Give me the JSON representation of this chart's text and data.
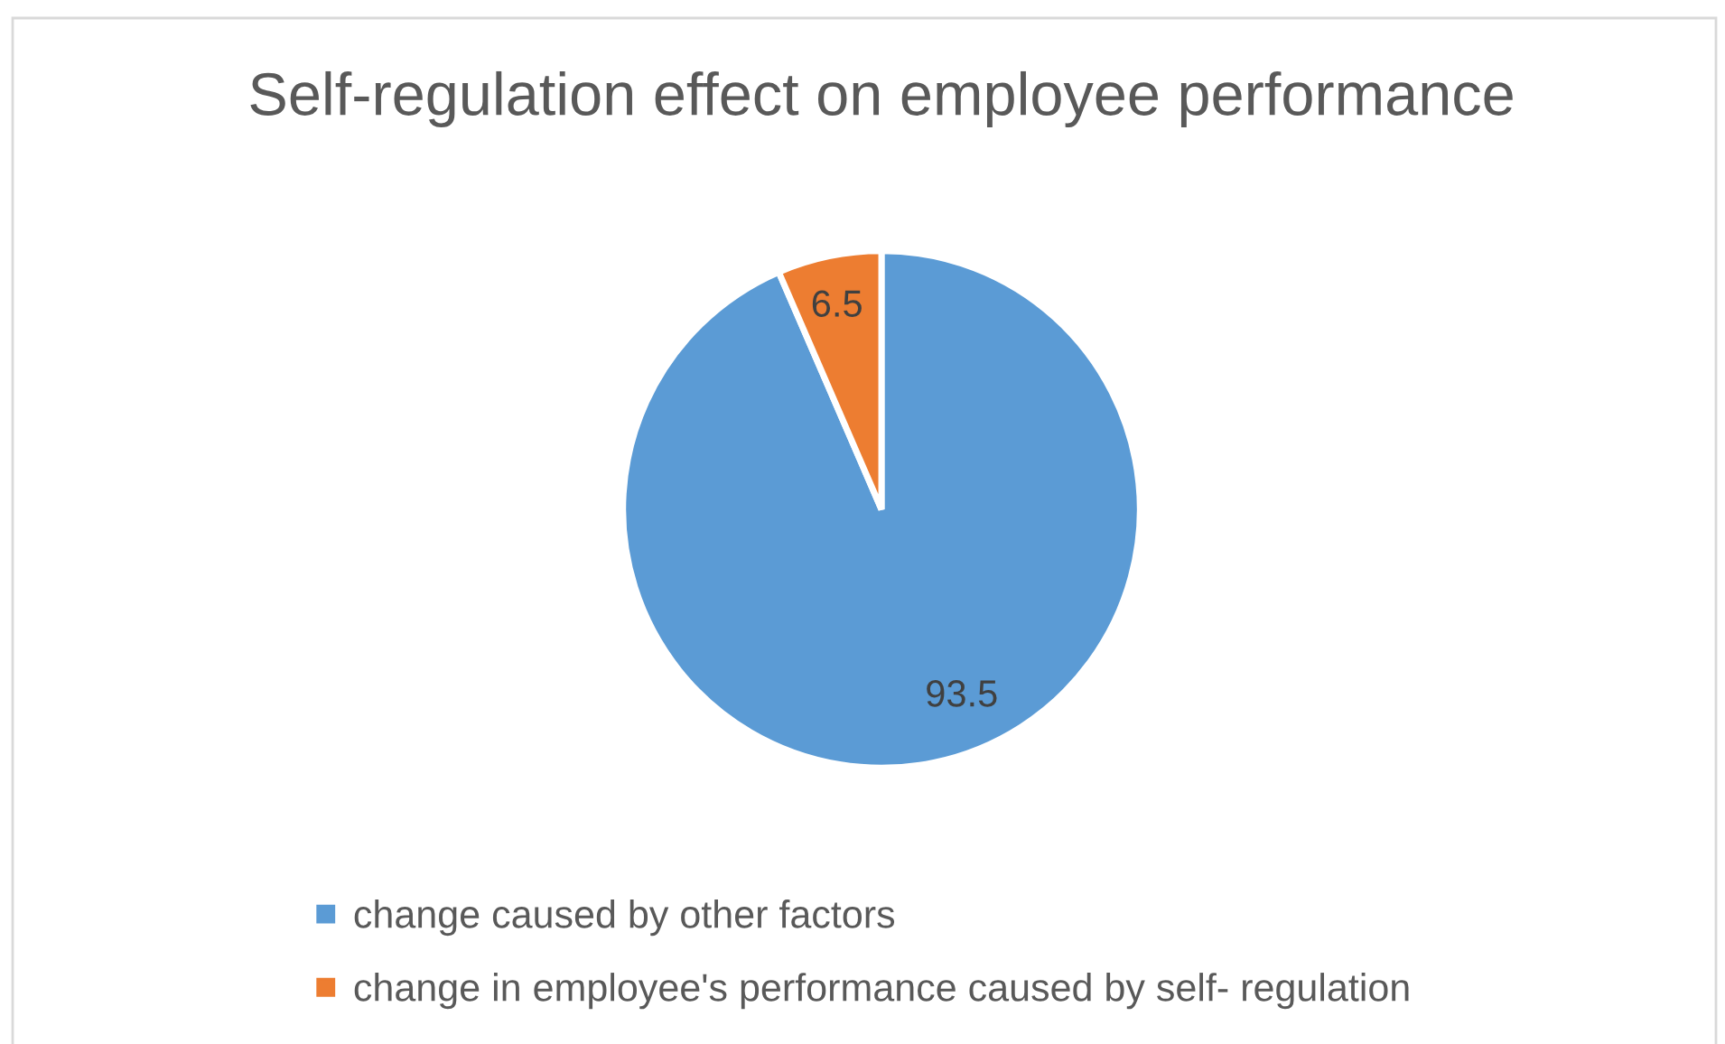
{
  "chart_data": {
    "type": "pie",
    "title": "Self-regulation effect on employee performance",
    "categories": [
      "change caused by other factors",
      "change in employee's performance caused by self- regulation"
    ],
    "values": [
      93.5,
      6.5
    ],
    "colors": [
      "#5b9bd5",
      "#ed7d31"
    ],
    "data_labels": true,
    "legend": "bottom"
  }
}
